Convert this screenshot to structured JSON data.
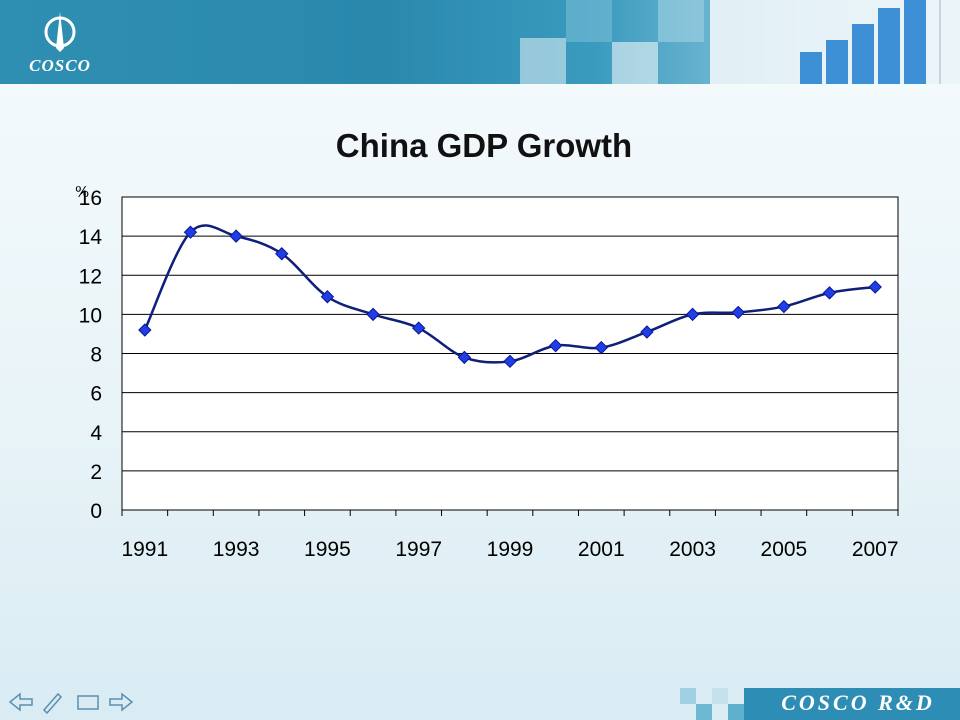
{
  "header": {
    "logo_text": "COSCO",
    "logo_icon": "cosco-sail-logo-icon",
    "banner_icon": "growth-bar-chart-banner-icon",
    "colors": {
      "band": "#2f8fb2",
      "accent": "#3a9bbf"
    }
  },
  "footer": {
    "brand": "COSCO R&D",
    "nav_icons": [
      "arrow-left-icon",
      "pen-icon",
      "screen-icon",
      "arrow-right-icon"
    ]
  },
  "chart_data": {
    "type": "line",
    "title": "China GDP Growth",
    "ylabel": "%",
    "xlabel": "",
    "ylim": [
      0,
      16
    ],
    "yticks": [
      0,
      2,
      4,
      6,
      8,
      10,
      12,
      14,
      16
    ],
    "xtick_labels": [
      "1991",
      "1993",
      "1995",
      "1997",
      "1999",
      "2001",
      "2003",
      "2005",
      "2007"
    ],
    "grid": true,
    "legend": "none",
    "colors": {
      "line": "#0f1f7a",
      "marker": "#1f3de8",
      "marker_edge": "#0a1a8a"
    },
    "series": [
      {
        "x": [
          1991,
          1992,
          1993,
          1994,
          1995,
          1996,
          1997,
          1998,
          1999,
          2000,
          2001,
          2002,
          2003,
          2004,
          2005,
          2006,
          2007
        ],
        "values": [
          9.2,
          14.2,
          14.0,
          13.1,
          10.9,
          10.0,
          9.3,
          7.8,
          7.6,
          8.4,
          8.3,
          9.1,
          10.0,
          10.1,
          10.4,
          11.1,
          11.4
        ]
      }
    ]
  }
}
